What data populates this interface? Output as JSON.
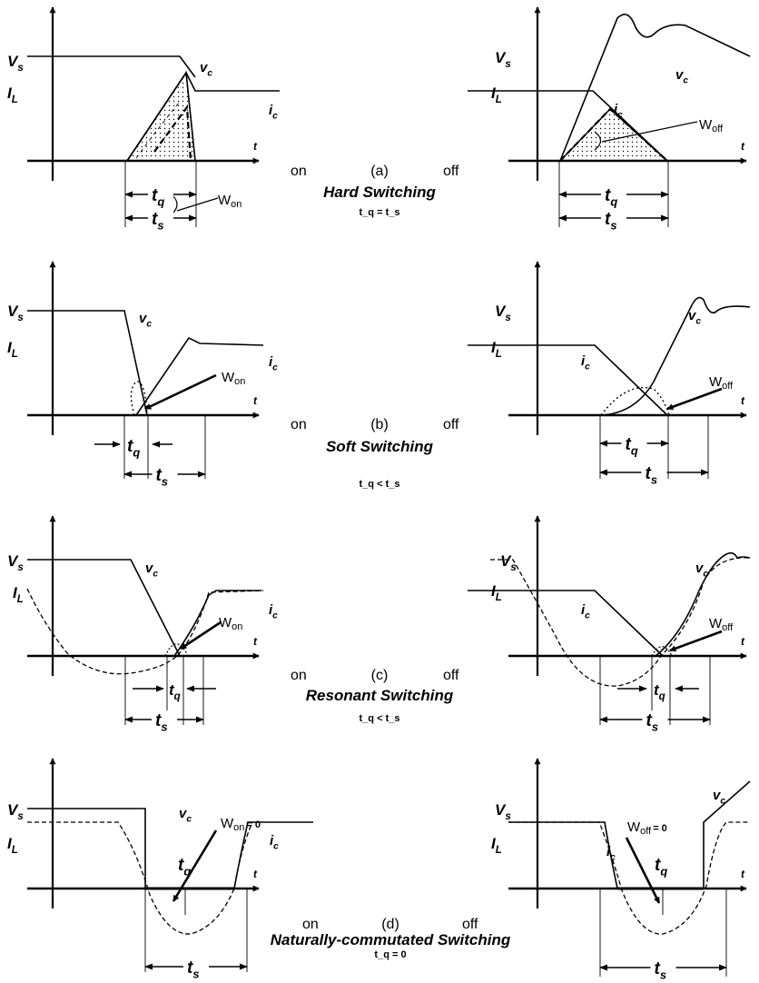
{
  "labels": {
    "Vs": "V",
    "Vs_sub": "s",
    "IL": "I",
    "IL_sub": "L",
    "vc": "v",
    "vc_sub": "c",
    "ic": "i",
    "ic_sub": "c",
    "t_axis": "t",
    "tq": "t",
    "tq_sub": "q",
    "ts": "t",
    "ts_sub": "s",
    "W": "W",
    "on_sub": "on",
    "off_sub": "off",
    "zero": "= 0",
    "on": "on",
    "off": "off"
  },
  "rows": [
    {
      "id": "a",
      "tag": "(a)",
      "caption": "Hard Switching",
      "condition": "t_q = t_s"
    },
    {
      "id": "b",
      "tag": "(b)",
      "caption": "Soft Switching",
      "condition": "t_q < t_s"
    },
    {
      "id": "c",
      "tag": "(c)",
      "caption": "Resonant Switching",
      "condition": "t_q < t_s"
    },
    {
      "id": "d",
      "tag": "(d)",
      "caption": "Naturally-commutated Switching",
      "condition": "t_q = 0"
    }
  ]
}
